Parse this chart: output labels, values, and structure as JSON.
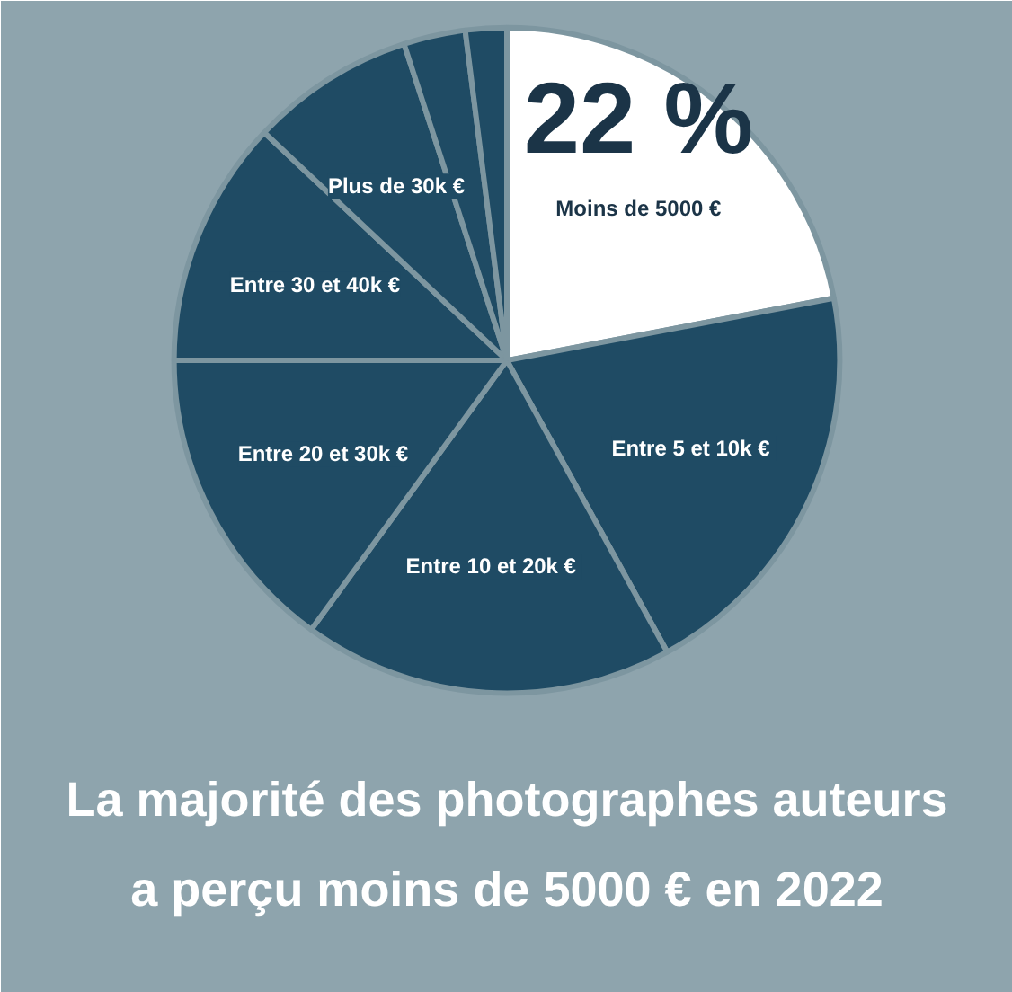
{
  "chart_data": {
    "type": "pie",
    "title": "La majorité des photographes auteurs a perçu moins de 5000 € en 2022",
    "categories": [
      "Moins de 5000 €",
      "Entre 5  et 10k €",
      "Entre 10  et 20k €",
      "Entre 20 et 30k €",
      "Entre 30 et 40k €",
      "Plus de 30k €",
      null,
      null
    ],
    "values": [
      22,
      20,
      18,
      15,
      12,
      8,
      3,
      2
    ],
    "colors": [
      "#ffffff",
      "#1f4b64",
      "#1f4b64",
      "#1f4b64",
      "#1f4b64",
      "#1f4b64",
      "#1f4b64",
      "#1f4b64"
    ],
    "value_labels": [
      "22 %",
      null,
      null,
      null,
      null,
      null,
      null,
      null
    ]
  }
}
